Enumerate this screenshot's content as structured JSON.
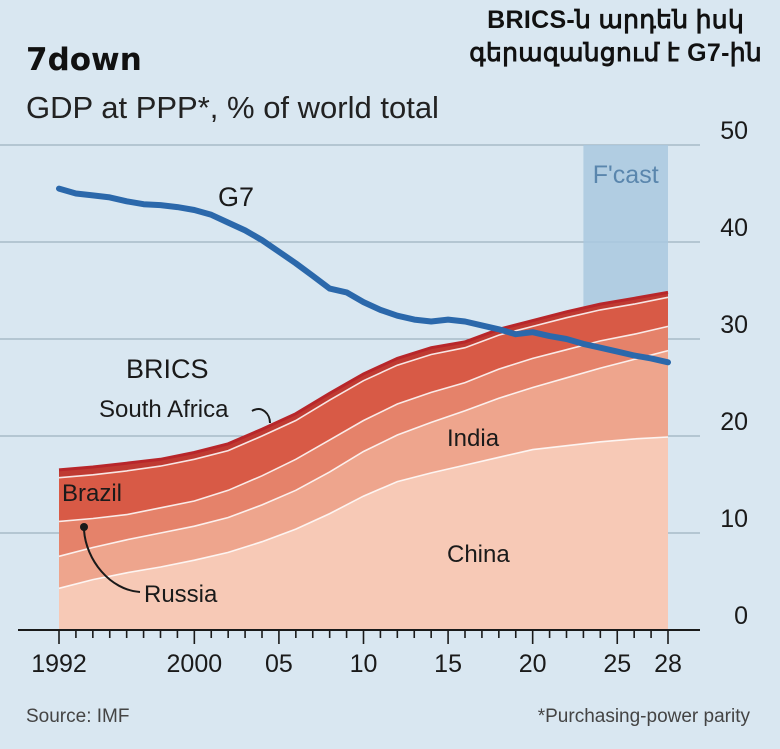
{
  "corner_title": [
    "BRICS-ն արդեն իսկ",
    "գերազանցում է G7-ին"
  ],
  "chart_data": {
    "type": "area",
    "title": "7down",
    "subtitle": "GDP at PPP*, % of world total",
    "source": "Source: IMF",
    "footnote": "*Purchasing-power parity",
    "forecast_label": "F'cast",
    "forecast_range": [
      2023,
      2028
    ],
    "x_range": [
      1992,
      2028
    ],
    "ylim": [
      0,
      50
    ],
    "y_ticks": [
      0,
      10,
      20,
      30,
      40,
      50
    ],
    "x_ticks": [
      {
        "value": 1992,
        "label": "1992"
      },
      {
        "value": 2000,
        "label": "2000"
      },
      {
        "value": 2005,
        "label": "05"
      },
      {
        "value": 2010,
        "label": "10"
      },
      {
        "value": 2015,
        "label": "15"
      },
      {
        "value": 2020,
        "label": "20"
      },
      {
        "value": 2025,
        "label": "25"
      },
      {
        "value": 2028,
        "label": "28"
      }
    ],
    "x": [
      1992,
      1994,
      1996,
      1998,
      2000,
      2002,
      2004,
      2006,
      2008,
      2010,
      2012,
      2014,
      2016,
      2018,
      2020,
      2022,
      2024,
      2026,
      2028
    ],
    "series": [
      {
        "name": "China",
        "color": "#f7c9b6",
        "values": [
          4.3,
          5.2,
          5.9,
          6.5,
          7.2,
          8.0,
          9.1,
          10.4,
          12.0,
          13.8,
          15.3,
          16.2,
          17.0,
          17.8,
          18.6,
          19.0,
          19.4,
          19.7,
          19.9
        ]
      },
      {
        "name": "India",
        "color": "#eea58d",
        "values": [
          3.3,
          3.3,
          3.4,
          3.5,
          3.5,
          3.6,
          3.8,
          4.0,
          4.3,
          4.6,
          4.8,
          5.2,
          5.6,
          6.1,
          6.4,
          7.0,
          7.6,
          8.2,
          8.9
        ]
      },
      {
        "name": "Russia",
        "color": "#e5826a",
        "values": [
          3.6,
          3.0,
          2.6,
          2.6,
          2.6,
          2.8,
          3.0,
          3.2,
          3.3,
          3.2,
          3.2,
          3.1,
          2.9,
          3.0,
          3.0,
          2.9,
          2.8,
          2.6,
          2.5
        ]
      },
      {
        "name": "Brazil",
        "color": "#d85a46",
        "values": [
          4.5,
          4.5,
          4.5,
          4.3,
          4.3,
          4.1,
          4.1,
          4.0,
          4.1,
          4.1,
          4.0,
          3.9,
          3.6,
          3.5,
          3.3,
          3.3,
          3.2,
          3.1,
          3.0
        ]
      },
      {
        "name": "South Africa",
        "color": "#bf3a32",
        "values": [
          0.8,
          0.8,
          0.8,
          0.7,
          0.7,
          0.7,
          0.7,
          0.7,
          0.7,
          0.7,
          0.7,
          0.7,
          0.6,
          0.6,
          0.6,
          0.6,
          0.6,
          0.6,
          0.5
        ]
      }
    ],
    "lines": [
      {
        "name": "G7",
        "color": "#2b68ab",
        "x": [
          1992,
          1993,
          1994,
          1995,
          1996,
          1997,
          1998,
          1999,
          2000,
          2001,
          2002,
          2003,
          2004,
          2005,
          2006,
          2007,
          2008,
          2009,
          2010,
          2011,
          2012,
          2013,
          2014,
          2015,
          2016,
          2017,
          2018,
          2019,
          2020,
          2021,
          2022,
          2023,
          2024,
          2025,
          2026,
          2027,
          2028
        ],
        "values": [
          45.5,
          45.0,
          44.8,
          44.6,
          44.2,
          43.9,
          43.8,
          43.6,
          43.3,
          42.8,
          42.0,
          41.2,
          40.2,
          39.0,
          37.8,
          36.5,
          35.2,
          34.8,
          33.8,
          33.0,
          32.4,
          32.0,
          31.8,
          32.0,
          31.8,
          31.4,
          31.0,
          30.5,
          30.7,
          30.3,
          30.0,
          29.5,
          29.1,
          28.7,
          28.3,
          28.0,
          27.6
        ]
      }
    ],
    "labels": {
      "g7": "G7",
      "brics": "BRICS",
      "south_africa": "South Africa",
      "india": "India",
      "brazil": "Brazil",
      "china": "China",
      "russia": "Russia"
    }
  }
}
